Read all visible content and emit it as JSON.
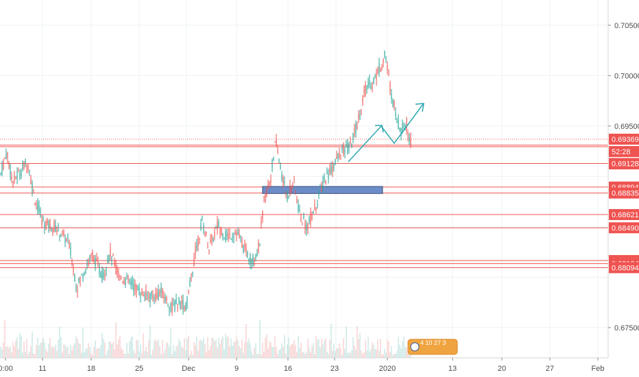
{
  "chart_data": {
    "type": "candlestick",
    "ylim": [
      0.672,
      0.7075
    ],
    "y_ticks": [
      "0.70500",
      "0.70000",
      "0.69500",
      "0.67500"
    ],
    "x_ticks": [
      "0:00",
      "11",
      "18",
      "25",
      "Dec",
      "9",
      "16",
      "23",
      "2020",
      "13",
      "20",
      "27",
      "Feb"
    ],
    "current_price": "0.69369",
    "countdown": "52:28",
    "horizontal_levels": [
      "0.69295",
      "0.69128",
      "0.68894",
      "0.68835",
      "0.68621",
      "0.68490",
      "0.68165",
      "0.68134",
      "0.68094"
    ],
    "level_values": [
      0.6931,
      0.69295,
      0.69128,
      0.68894,
      0.68835,
      0.68621,
      0.6849,
      0.68165,
      0.68134,
      0.68094
    ],
    "zone": {
      "from": 0.6883,
      "to": 0.689
    },
    "grid": true,
    "colors": {
      "up": "#26a69a",
      "down": "#ef5350",
      "level": "#ef5350",
      "arrow": "#2aa8b0",
      "zone": "#6c8cc7"
    },
    "legend": "none"
  },
  "badge": {
    "icon": "flag-icon",
    "text": "4 10 27 3"
  }
}
